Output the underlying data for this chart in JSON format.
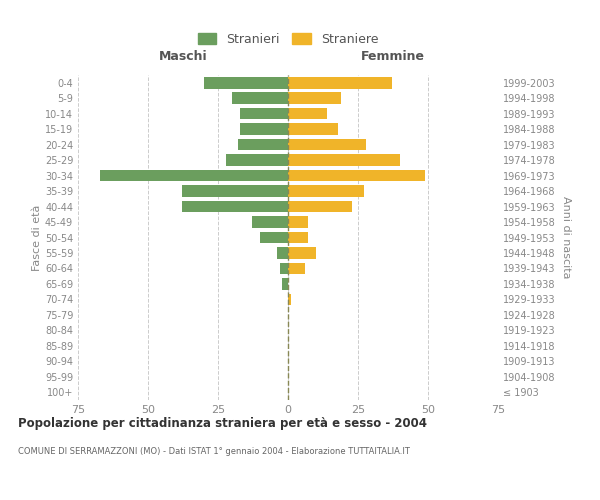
{
  "age_groups": [
    "100+",
    "95-99",
    "90-94",
    "85-89",
    "80-84",
    "75-79",
    "70-74",
    "65-69",
    "60-64",
    "55-59",
    "50-54",
    "45-49",
    "40-44",
    "35-39",
    "30-34",
    "25-29",
    "20-24",
    "15-19",
    "10-14",
    "5-9",
    "0-4"
  ],
  "birth_years": [
    "≤ 1903",
    "1904-1908",
    "1909-1913",
    "1914-1918",
    "1919-1923",
    "1924-1928",
    "1929-1933",
    "1934-1938",
    "1939-1943",
    "1944-1948",
    "1949-1953",
    "1954-1958",
    "1959-1963",
    "1964-1968",
    "1969-1973",
    "1974-1978",
    "1979-1983",
    "1984-1988",
    "1989-1993",
    "1994-1998",
    "1999-2003"
  ],
  "males": [
    0,
    0,
    0,
    0,
    0,
    0,
    0,
    2,
    3,
    4,
    10,
    13,
    38,
    38,
    67,
    22,
    18,
    17,
    17,
    20,
    30
  ],
  "females": [
    0,
    0,
    0,
    0,
    0,
    0,
    1,
    0,
    6,
    10,
    7,
    7,
    23,
    27,
    49,
    40,
    28,
    18,
    14,
    19,
    37
  ],
  "male_color": "#6b9e5e",
  "female_color": "#f0b429",
  "background_color": "#ffffff",
  "grid_color": "#cccccc",
  "title": "Popolazione per cittadinanza straniera per età e sesso - 2004",
  "subtitle": "COMUNE DI SERRAMAZZONI (MO) - Dati ISTAT 1° gennaio 2004 - Elaborazione TUTTAITALIA.IT",
  "xlabel_left": "Maschi",
  "xlabel_right": "Femmine",
  "ylabel_left": "Fasce di età",
  "ylabel_right": "Anni di nascita",
  "legend_males": "Stranieri",
  "legend_females": "Straniere",
  "xlim": 75,
  "bar_height": 0.75
}
